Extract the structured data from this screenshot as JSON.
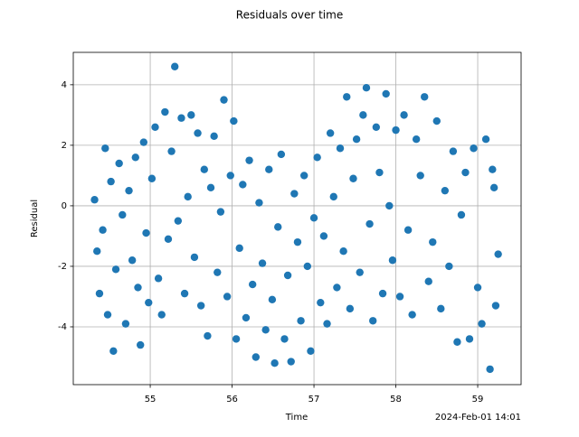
{
  "chart_data": {
    "type": "scatter",
    "title": "Residuals over time",
    "xlabel": "Time",
    "ylabel": "Residual",
    "x_offset_label": "2024-Feb-01 14:01",
    "grid": true,
    "xlim": [
      54.06,
      59.53
    ],
    "ylim": [
      -5.91,
      5.07
    ],
    "xticks": [
      55,
      56,
      57,
      58,
      59
    ],
    "yticks": [
      -4,
      -2,
      0,
      2,
      4
    ],
    "series": [
      {
        "color": "#1f77b4",
        "x": [
          54.32,
          54.35,
          54.38,
          54.42,
          54.45,
          54.48,
          54.52,
          54.55,
          54.58,
          54.62,
          54.66,
          54.7,
          54.74,
          54.78,
          54.82,
          54.85,
          54.88,
          54.92,
          54.95,
          54.98,
          55.02,
          55.06,
          55.1,
          55.14,
          55.18,
          55.22,
          55.26,
          55.3,
          55.34,
          55.38,
          55.42,
          55.46,
          55.5,
          55.54,
          55.58,
          55.62,
          55.66,
          55.7,
          55.74,
          55.78,
          55.82,
          55.86,
          55.9,
          55.94,
          55.98,
          56.02,
          56.05,
          56.09,
          56.13,
          56.17,
          56.21,
          56.25,
          56.29,
          56.33,
          56.37,
          56.41,
          56.45,
          56.49,
          56.52,
          56.56,
          56.6,
          56.64,
          56.68,
          56.72,
          56.76,
          56.8,
          56.84,
          56.88,
          56.92,
          56.96,
          57.0,
          57.04,
          57.08,
          57.12,
          57.16,
          57.2,
          57.24,
          57.28,
          57.32,
          57.36,
          57.4,
          57.44,
          57.48,
          57.52,
          57.56,
          57.6,
          57.64,
          57.68,
          57.72,
          57.76,
          57.8,
          57.84,
          57.88,
          57.92,
          57.96,
          58.0,
          58.05,
          58.1,
          58.15,
          58.2,
          58.25,
          58.3,
          58.35,
          58.4,
          58.45,
          58.5,
          58.55,
          58.6,
          58.65,
          58.7,
          58.75,
          58.8,
          58.85,
          58.9,
          58.95,
          59.0,
          59.05,
          59.1,
          59.15,
          59.2,
          59.25,
          59.22,
          59.18
        ],
        "values": [
          0.2,
          -1.5,
          -2.9,
          -0.8,
          1.9,
          -3.6,
          0.8,
          -4.8,
          -2.1,
          1.4,
          -0.3,
          -3.9,
          0.5,
          -1.8,
          1.6,
          -2.7,
          -4.6,
          2.1,
          -0.9,
          -3.2,
          0.9,
          2.6,
          -2.4,
          -3.6,
          3.1,
          -1.1,
          1.8,
          4.6,
          -0.5,
          2.9,
          -2.9,
          0.3,
          3.0,
          -1.7,
          2.4,
          -3.3,
          1.2,
          -4.3,
          0.6,
          2.3,
          -2.2,
          -0.2,
          3.5,
          -3.0,
          1.0,
          2.8,
          -4.4,
          -1.4,
          0.7,
          -3.7,
          1.5,
          -2.6,
          -5.0,
          0.1,
          -1.9,
          -4.1,
          1.2,
          -3.1,
          -5.2,
          -0.7,
          1.7,
          -4.4,
          -2.3,
          -5.15,
          0.4,
          -1.2,
          -3.8,
          1.0,
          -2.0,
          -4.8,
          -0.4,
          1.6,
          -3.2,
          -1.0,
          -3.9,
          2.4,
          0.3,
          -2.7,
          1.9,
          -1.5,
          3.6,
          -3.4,
          0.9,
          2.2,
          -2.2,
          3.0,
          3.9,
          -0.6,
          -3.8,
          2.6,
          1.1,
          -2.9,
          3.7,
          0.0,
          -1.8,
          2.5,
          -3.0,
          3.0,
          -0.8,
          -3.6,
          2.2,
          1.0,
          3.6,
          -2.5,
          -1.2,
          2.8,
          -3.4,
          0.5,
          -2.0,
          1.8,
          -4.5,
          -0.3,
          1.1,
          -4.4,
          1.9,
          -2.7,
          -3.9,
          2.2,
          -5.4,
          0.6,
          -1.6,
          -3.3,
          1.2
        ]
      }
    ]
  }
}
